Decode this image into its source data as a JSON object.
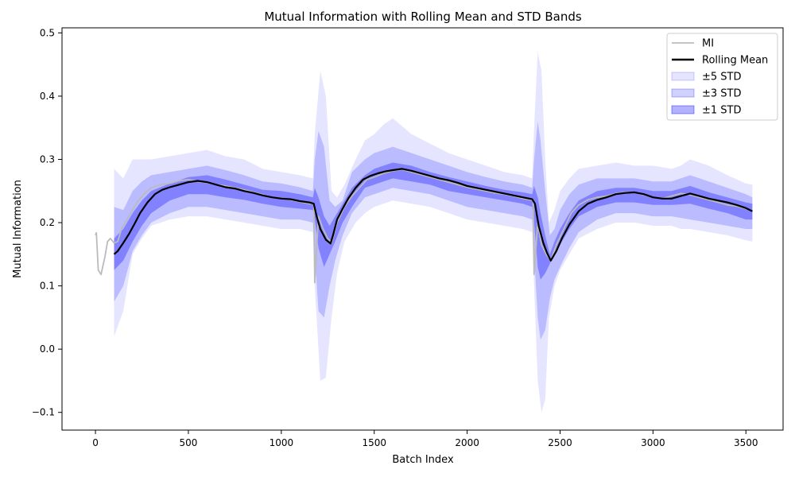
{
  "chart_data": {
    "type": "line",
    "title": "Mutual Information with Rolling Mean and STD Bands",
    "xlabel": "Batch Index",
    "ylabel": "Mutual Information",
    "xlim": [
      -180,
      3700
    ],
    "ylim": [
      -0.128,
      0.508
    ],
    "xticks": [
      0,
      500,
      1000,
      1500,
      2000,
      2500,
      3000,
      3500
    ],
    "xtick_labels": [
      "0",
      "500",
      "1000",
      "1500",
      "2000",
      "2500",
      "3000",
      "3500"
    ],
    "yticks": [
      -0.1,
      0.0,
      0.1,
      0.2,
      0.3,
      0.4,
      0.5
    ],
    "ytick_labels": [
      "−0.1",
      "0.0",
      "0.1",
      "0.2",
      "0.3",
      "0.4",
      "0.5"
    ],
    "grid": false,
    "legend_position": "upper right",
    "legend": [
      {
        "label": "MI",
        "kind": "line",
        "color": "#bbbbbb"
      },
      {
        "label": "Rolling Mean",
        "kind": "line",
        "color": "#000000"
      },
      {
        "label": "±5 STD",
        "kind": "band",
        "color": "#0000ff",
        "opacity": 0.1
      },
      {
        "label": "±3 STD",
        "kind": "band",
        "color": "#0000ff",
        "opacity": 0.18
      },
      {
        "label": "±1 STD",
        "kind": "band",
        "color": "#0000ff",
        "opacity": 0.3
      }
    ],
    "series": [
      {
        "name": "MI",
        "color": "#bbbbbb",
        "x": [
          0,
          5,
          15,
          30,
          50,
          65,
          80,
          100,
          120,
          140,
          160,
          180,
          200,
          230,
          260,
          300,
          350,
          400,
          450,
          500,
          550,
          600,
          650,
          700,
          750,
          800,
          850,
          900,
          950,
          1000,
          1050,
          1100,
          1150,
          1175,
          1180,
          1200,
          1225,
          1250,
          1270,
          1300,
          1340,
          1380,
          1420,
          1460,
          1500,
          1550,
          1600,
          1650,
          1700,
          1750,
          1800,
          1850,
          1900,
          1950,
          2000,
          2050,
          2100,
          2150,
          2200,
          2250,
          2300,
          2340,
          2355,
          2360,
          2380,
          2400,
          2425,
          2450,
          2480,
          2520,
          2560,
          2600,
          2650,
          2700,
          2750,
          2800,
          2850,
          2900,
          2950,
          3000,
          3050,
          3100,
          3150,
          3200,
          3250,
          3300,
          3350,
          3400,
          3450,
          3500,
          3535
        ],
        "y": [
          0.18,
          0.184,
          0.125,
          0.118,
          0.145,
          0.17,
          0.175,
          0.168,
          0.17,
          0.19,
          0.2,
          0.21,
          0.22,
          0.235,
          0.245,
          0.255,
          0.26,
          0.262,
          0.266,
          0.268,
          0.265,
          0.263,
          0.26,
          0.258,
          0.255,
          0.252,
          0.248,
          0.244,
          0.24,
          0.238,
          0.236,
          0.233,
          0.23,
          0.23,
          0.105,
          0.21,
          0.19,
          0.175,
          0.168,
          0.2,
          0.225,
          0.242,
          0.255,
          0.268,
          0.272,
          0.278,
          0.282,
          0.284,
          0.28,
          0.276,
          0.272,
          0.268,
          0.264,
          0.26,
          0.256,
          0.253,
          0.25,
          0.247,
          0.245,
          0.242,
          0.238,
          0.236,
          0.235,
          0.118,
          0.2,
          0.165,
          0.15,
          0.14,
          0.165,
          0.19,
          0.215,
          0.228,
          0.236,
          0.24,
          0.242,
          0.246,
          0.248,
          0.248,
          0.244,
          0.24,
          0.238,
          0.242,
          0.246,
          0.244,
          0.24,
          0.236,
          0.232,
          0.228,
          0.226,
          0.222,
          0.218
        ]
      },
      {
        "name": "Rolling Mean",
        "color": "#000000",
        "x": [
          100,
          120,
          150,
          180,
          210,
          240,
          280,
          320,
          360,
          400,
          450,
          500,
          550,
          600,
          650,
          700,
          750,
          800,
          850,
          900,
          950,
          1000,
          1050,
          1100,
          1150,
          1175,
          1190,
          1210,
          1240,
          1265,
          1280,
          1300,
          1330,
          1360,
          1400,
          1440,
          1480,
          1520,
          1560,
          1600,
          1650,
          1700,
          1750,
          1800,
          1850,
          1900,
          1950,
          2000,
          2050,
          2100,
          2150,
          2200,
          2250,
          2300,
          2350,
          2365,
          2385,
          2410,
          2430,
          2450,
          2480,
          2510,
          2550,
          2600,
          2650,
          2700,
          2750,
          2800,
          2850,
          2900,
          2950,
          3000,
          3050,
          3100,
          3150,
          3200,
          3250,
          3300,
          3350,
          3400,
          3450,
          3500,
          3535
        ],
        "y": [
          0.15,
          0.155,
          0.168,
          0.182,
          0.198,
          0.215,
          0.232,
          0.245,
          0.252,
          0.256,
          0.26,
          0.264,
          0.266,
          0.264,
          0.26,
          0.256,
          0.254,
          0.25,
          0.247,
          0.243,
          0.24,
          0.238,
          0.237,
          0.234,
          0.232,
          0.23,
          0.21,
          0.19,
          0.173,
          0.167,
          0.182,
          0.205,
          0.222,
          0.238,
          0.255,
          0.268,
          0.274,
          0.278,
          0.281,
          0.283,
          0.285,
          0.282,
          0.278,
          0.274,
          0.27,
          0.267,
          0.263,
          0.258,
          0.255,
          0.252,
          0.249,
          0.246,
          0.243,
          0.24,
          0.237,
          0.23,
          0.195,
          0.168,
          0.152,
          0.14,
          0.155,
          0.175,
          0.197,
          0.218,
          0.23,
          0.236,
          0.24,
          0.245,
          0.247,
          0.248,
          0.245,
          0.24,
          0.238,
          0.238,
          0.242,
          0.246,
          0.242,
          0.238,
          0.235,
          0.232,
          0.228,
          0.223,
          0.218
        ]
      }
    ],
    "bands": [
      {
        "name": "±5 STD",
        "color": "#0000ff",
        "opacity": 0.1,
        "x": [
          100,
          150,
          200,
          250,
          300,
          400,
          500,
          600,
          700,
          800,
          900,
          1000,
          1100,
          1170,
          1180,
          1210,
          1240,
          1270,
          1300,
          1340,
          1400,
          1450,
          1500,
          1550,
          1600,
          1700,
          1800,
          1900,
          2000,
          2100,
          2200,
          2300,
          2350,
          2360,
          2380,
          2400,
          2420,
          2440,
          2470,
          2500,
          2550,
          2600,
          2700,
          2800,
          2900,
          3000,
          3100,
          3150,
          3200,
          3300,
          3400,
          3500,
          3535
        ],
        "upper": [
          0.285,
          0.27,
          0.3,
          0.3,
          0.3,
          0.305,
          0.31,
          0.315,
          0.305,
          0.3,
          0.285,
          0.28,
          0.275,
          0.27,
          0.34,
          0.44,
          0.4,
          0.25,
          0.24,
          0.26,
          0.3,
          0.33,
          0.34,
          0.355,
          0.365,
          0.34,
          0.325,
          0.31,
          0.3,
          0.29,
          0.28,
          0.275,
          0.27,
          0.35,
          0.47,
          0.44,
          0.3,
          0.2,
          0.22,
          0.25,
          0.27,
          0.285,
          0.29,
          0.295,
          0.29,
          0.29,
          0.285,
          0.29,
          0.3,
          0.29,
          0.275,
          0.262,
          0.26
        ],
        "lower": [
          0.02,
          0.06,
          0.15,
          0.175,
          0.195,
          0.205,
          0.21,
          0.21,
          0.205,
          0.2,
          0.195,
          0.19,
          0.19,
          0.185,
          0.1,
          -0.05,
          -0.045,
          0.05,
          0.12,
          0.17,
          0.2,
          0.215,
          0.225,
          0.23,
          0.235,
          0.23,
          0.225,
          0.215,
          0.205,
          0.2,
          0.195,
          0.19,
          0.185,
          0.1,
          -0.05,
          -0.1,
          -0.08,
          0.05,
          0.1,
          0.125,
          0.15,
          0.175,
          0.19,
          0.2,
          0.2,
          0.195,
          0.195,
          0.19,
          0.19,
          0.185,
          0.18,
          0.172,
          0.17
        ]
      },
      {
        "name": "±3 STD",
        "color": "#0000ff",
        "opacity": 0.18,
        "x": [
          100,
          150,
          200,
          250,
          300,
          400,
          500,
          600,
          700,
          800,
          900,
          1000,
          1100,
          1170,
          1180,
          1200,
          1230,
          1260,
          1290,
          1330,
          1380,
          1450,
          1500,
          1550,
          1600,
          1700,
          1800,
          1900,
          2000,
          2100,
          2200,
          2300,
          2350,
          2360,
          2380,
          2395,
          2420,
          2445,
          2470,
          2500,
          2550,
          2600,
          2700,
          2800,
          2900,
          3000,
          3100,
          3200,
          3300,
          3400,
          3500,
          3535
        ],
        "upper": [
          0.225,
          0.22,
          0.25,
          0.265,
          0.275,
          0.28,
          0.285,
          0.29,
          0.283,
          0.275,
          0.265,
          0.262,
          0.256,
          0.25,
          0.3,
          0.345,
          0.32,
          0.235,
          0.225,
          0.235,
          0.28,
          0.3,
          0.31,
          0.315,
          0.32,
          0.31,
          0.3,
          0.29,
          0.28,
          0.272,
          0.265,
          0.26,
          0.255,
          0.3,
          0.36,
          0.33,
          0.25,
          0.18,
          0.19,
          0.22,
          0.245,
          0.26,
          0.27,
          0.27,
          0.27,
          0.265,
          0.265,
          0.275,
          0.265,
          0.255,
          0.245,
          0.24
        ],
        "lower": [
          0.075,
          0.1,
          0.155,
          0.18,
          0.2,
          0.215,
          0.225,
          0.225,
          0.22,
          0.215,
          0.21,
          0.205,
          0.205,
          0.2,
          0.15,
          0.06,
          0.05,
          0.1,
          0.14,
          0.18,
          0.215,
          0.24,
          0.245,
          0.25,
          0.255,
          0.25,
          0.245,
          0.235,
          0.225,
          0.22,
          0.215,
          0.21,
          0.205,
          0.15,
          0.05,
          0.015,
          0.03,
          0.08,
          0.11,
          0.13,
          0.16,
          0.185,
          0.205,
          0.215,
          0.215,
          0.21,
          0.21,
          0.205,
          0.2,
          0.195,
          0.19,
          0.19
        ]
      },
      {
        "name": "±1 STD",
        "color": "#0000ff",
        "opacity": 0.3,
        "x": [
          100,
          150,
          200,
          250,
          300,
          400,
          500,
          600,
          700,
          800,
          900,
          1000,
          1100,
          1170,
          1180,
          1200,
          1230,
          1260,
          1290,
          1330,
          1380,
          1450,
          1500,
          1550,
          1600,
          1700,
          1800,
          1900,
          2000,
          2100,
          2200,
          2300,
          2350,
          2360,
          2380,
          2395,
          2420,
          2445,
          2470,
          2500,
          2550,
          2600,
          2700,
          2800,
          2900,
          3000,
          3100,
          3200,
          3300,
          3400,
          3500,
          3535
        ],
        "upper": [
          0.175,
          0.19,
          0.215,
          0.235,
          0.25,
          0.262,
          0.272,
          0.275,
          0.268,
          0.26,
          0.252,
          0.25,
          0.245,
          0.24,
          0.255,
          0.24,
          0.21,
          0.195,
          0.21,
          0.23,
          0.255,
          0.275,
          0.285,
          0.29,
          0.295,
          0.29,
          0.28,
          0.272,
          0.265,
          0.258,
          0.252,
          0.248,
          0.245,
          0.258,
          0.24,
          0.215,
          0.18,
          0.15,
          0.17,
          0.19,
          0.215,
          0.235,
          0.25,
          0.255,
          0.255,
          0.25,
          0.25,
          0.258,
          0.248,
          0.24,
          0.232,
          0.23
        ],
        "lower": [
          0.125,
          0.14,
          0.17,
          0.195,
          0.215,
          0.235,
          0.245,
          0.245,
          0.24,
          0.236,
          0.23,
          0.225,
          0.222,
          0.22,
          0.205,
          0.16,
          0.13,
          0.15,
          0.17,
          0.2,
          0.225,
          0.255,
          0.26,
          0.265,
          0.27,
          0.265,
          0.26,
          0.25,
          0.245,
          0.24,
          0.235,
          0.23,
          0.225,
          0.2,
          0.13,
          0.11,
          0.12,
          0.135,
          0.15,
          0.165,
          0.19,
          0.21,
          0.225,
          0.232,
          0.232,
          0.228,
          0.228,
          0.23,
          0.222,
          0.215,
          0.205,
          0.205
        ]
      }
    ]
  }
}
